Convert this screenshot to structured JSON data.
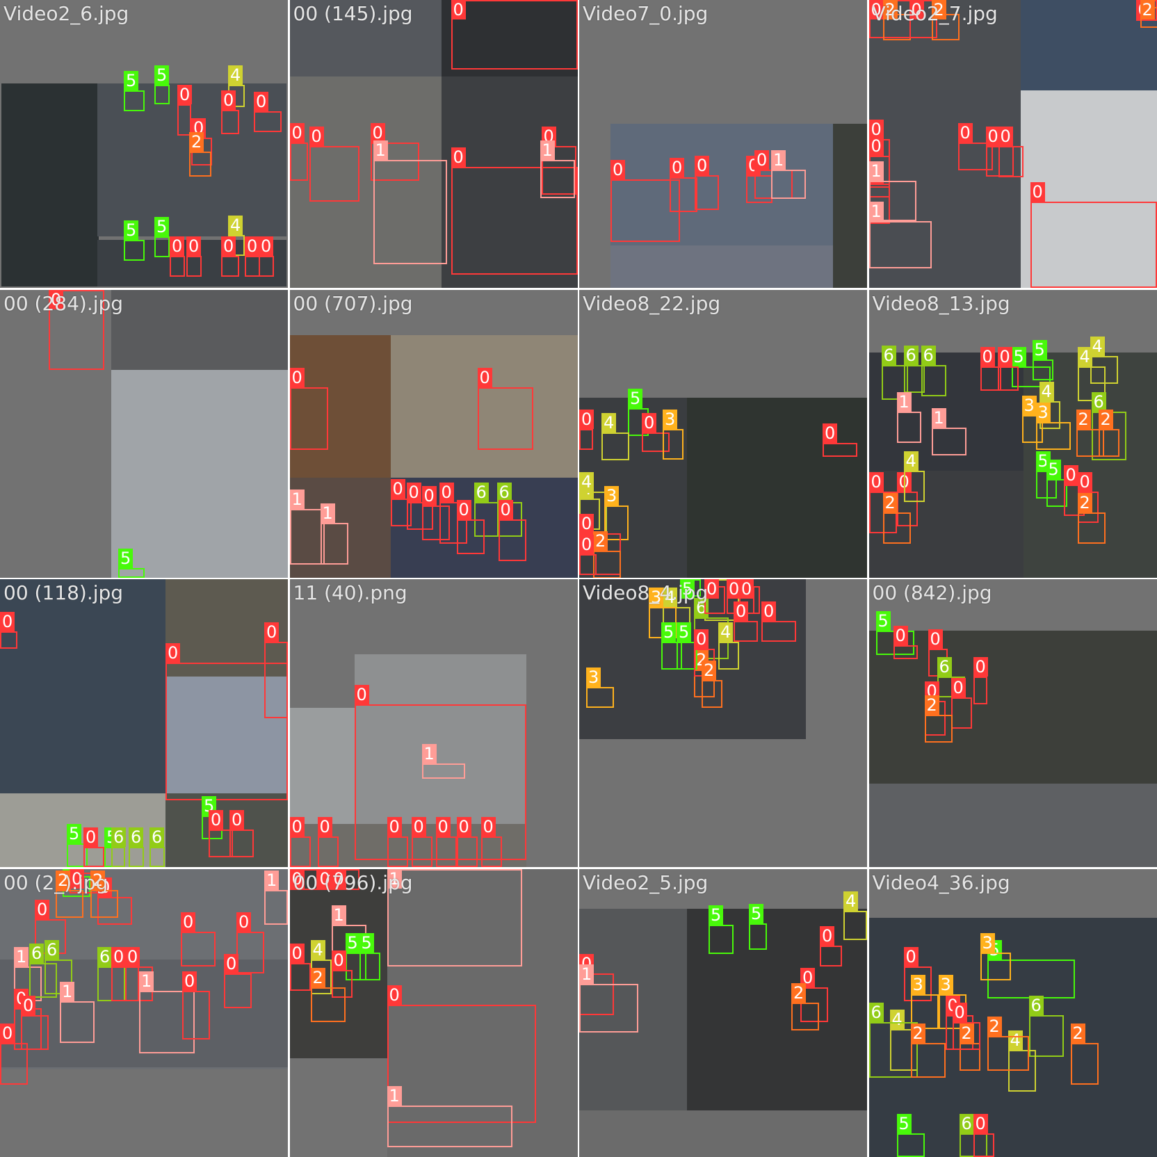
{
  "class_colors": {
    "0": "#ff3838",
    "1": "#ff9d97",
    "2": "#ff701f",
    "3": "#ffb21d",
    "4": "#cfd231",
    "5": "#48f90a",
    "6": "#92cc17"
  },
  "tiles": [
    {
      "filename": "Video2_6.jpg",
      "class_labels": [
        "5",
        "5",
        "4",
        "0",
        "0",
        "0",
        "0",
        "2",
        "5",
        "5",
        "4",
        "0",
        "0",
        "0",
        "0",
        "0"
      ]
    },
    {
      "filename": "00 (145).jpg",
      "class_labels": [
        "0",
        "0",
        "0",
        "0",
        "1",
        "0",
        "0",
        "1"
      ]
    },
    {
      "filename": "Video7_0.jpg",
      "class_labels": [
        "0",
        "0",
        "0",
        "0",
        "0",
        "1"
      ]
    },
    {
      "filename": "Video2_7.jpg",
      "class_labels": [
        "0",
        "2",
        "0",
        "2",
        "0",
        "2",
        "0",
        "0",
        "0",
        "0",
        "0",
        "0",
        "1",
        "1",
        "0"
      ]
    },
    {
      "filename": "00 (284).jpg",
      "class_labels": [
        "0",
        "5"
      ]
    },
    {
      "filename": "00 (707).jpg",
      "class_labels": [
        "0",
        "0",
        "0",
        "0",
        "0",
        "0",
        "6",
        "6",
        "0",
        "0",
        "1",
        "1"
      ]
    },
    {
      "filename": "Video8_22.jpg",
      "class_labels": [
        "5",
        "4",
        "0",
        "3",
        "4",
        "0",
        "0",
        "4",
        "3",
        "0",
        "2",
        "0"
      ]
    },
    {
      "filename": "Video8_13.jpg",
      "class_labels": [
        "6",
        "6",
        "6",
        "5",
        "5",
        "4",
        "4",
        "0",
        "0",
        "1",
        "1",
        "4",
        "3",
        "6",
        "3",
        "2",
        "2",
        "0",
        "0",
        "4",
        "5",
        "5",
        "0",
        "0",
        "2",
        "2"
      ]
    },
    {
      "filename": "00 (118).jpg",
      "class_labels": [
        "0",
        "0",
        "0",
        "5",
        "5",
        "0",
        "5",
        "0",
        "0",
        "6",
        "6",
        "6"
      ]
    },
    {
      "filename": "11 (40).png",
      "class_labels": [
        "0",
        "1",
        "0",
        "0",
        "0",
        "0",
        "0",
        "0",
        "0"
      ]
    },
    {
      "filename": "Video8_4.jpg",
      "class_labels": [
        "5",
        "4",
        "4",
        "3",
        "6",
        "0",
        "0",
        "2",
        "0",
        "5",
        "5",
        "4",
        "0",
        "0",
        "0",
        "3",
        "2"
      ]
    },
    {
      "filename": "00 (842).jpg",
      "class_labels": [
        "5",
        "0",
        "0",
        "6",
        "0",
        "0",
        "0",
        "2"
      ]
    },
    {
      "filename": "00 (2_).jpg",
      "class_labels": [
        "0",
        "5",
        "0",
        "0",
        "2",
        "2",
        "0",
        "0",
        "1",
        "1",
        "6",
        "6",
        "6",
        "0",
        "0",
        "0",
        "1",
        "1",
        "0",
        "0",
        "0",
        "0"
      ]
    },
    {
      "filename": "00 (796).jpg",
      "class_labels": [
        "1",
        "0",
        "0",
        "0",
        "1",
        "4",
        "5",
        "5",
        "0",
        "0",
        "2",
        "0",
        "1"
      ]
    },
    {
      "filename": "Video2_5.jpg",
      "class_labels": [
        "5",
        "5",
        "4",
        "0",
        "0",
        "1",
        "0",
        "2"
      ]
    },
    {
      "filename": "Video4_36.jpg",
      "class_labels": [
        "5",
        "3",
        "0",
        "3",
        "3",
        "0",
        "4",
        "6",
        "2",
        "6",
        "4",
        "2",
        "2",
        "2",
        "0",
        "5",
        "6",
        "0"
      ]
    }
  ]
}
